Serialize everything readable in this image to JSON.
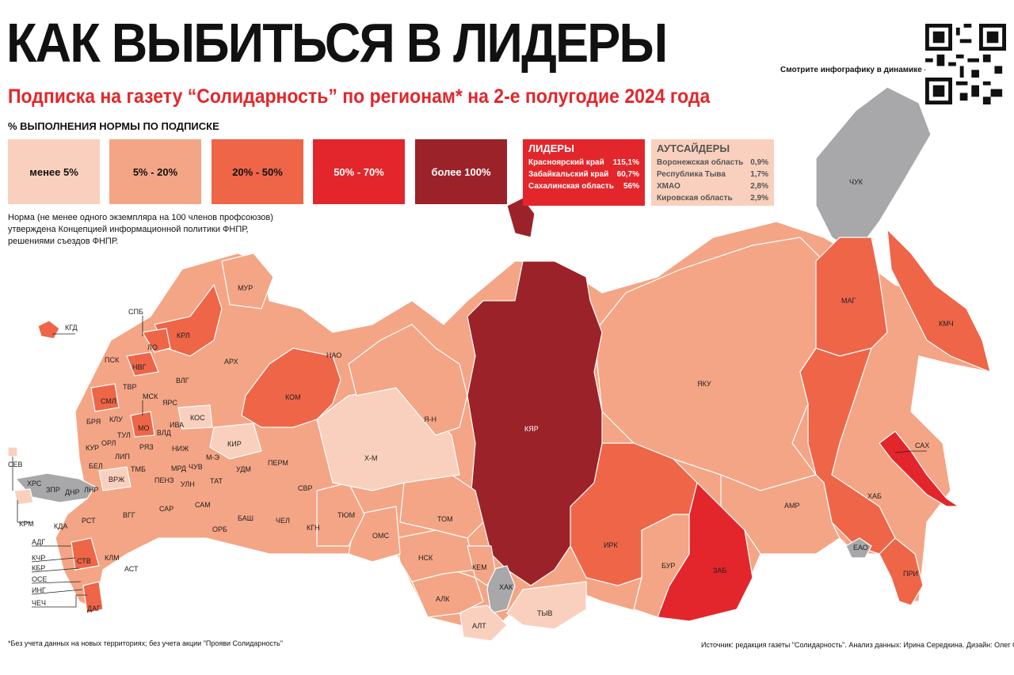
{
  "header": {
    "title": "КАК ВЫБИТЬСЯ В ЛИДЕРЫ",
    "subtitle": "Подписка на газету “Солидарность” по регионам* на 2-е полугодие 2024 года",
    "qr_caption": "Смотрите инфографику в динамике -"
  },
  "legend": {
    "title": "% ВЫПОЛНЕНИЯ НОРМЫ ПО ПОДПИСКЕ",
    "bins": [
      {
        "label": "менее 5%",
        "color": "#f9d0bd"
      },
      {
        "label": "5% - 20%",
        "color": "#f4a585"
      },
      {
        "label": "20% - 50%",
        "color": "#ee6548"
      },
      {
        "label": "50% - 70%",
        "color": "#e3262b"
      },
      {
        "label": "более 100%",
        "color": "#9c2229"
      }
    ],
    "norm_note": "Норма (не менее одного экземпляра на 100 членов профсоюзов) утверждена Концепцией информационной политики ФНПР, решениями съездов ФНПР."
  },
  "leaders": {
    "title": "ЛИДЕРЫ",
    "rows": [
      {
        "name": "Красноярский край",
        "value": "115,1%"
      },
      {
        "name": "Забайкальский край",
        "value": "60,7%"
      },
      {
        "name": "Сахалинская область",
        "value": "56%"
      }
    ]
  },
  "outsiders": {
    "title": "АУТСАЙДЕРЫ",
    "rows": [
      {
        "name": "Воронежская область",
        "value": "0,9%"
      },
      {
        "name": "Республика Тыва",
        "value": "1,7%"
      },
      {
        "name": "ХМАО",
        "value": "2,8%"
      },
      {
        "name": "Кировская область",
        "value": "2,9%"
      }
    ]
  },
  "map_labels": {
    "kyar": "КЯР",
    "yaku": "ЯКУ",
    "chuk": "ЧУК",
    "mag": "МАГ",
    "kmch": "КМЧ",
    "hab": "ХАБ",
    "amr": "АМР",
    "zab": "ЗАБ",
    "bur": "БУР",
    "irk": "ИРК",
    "tyv": "ТЫВ",
    "hak": "ХАК",
    "alt": "АЛТ",
    "alk": "АЛК",
    "nsk": "НСК",
    "kem": "КЕМ",
    "tom": "ТОМ",
    "oms": "ОМС",
    "tyum": "ТЮМ",
    "hm": "Х-М",
    "yan": "Я-Н",
    "kom": "КОМ",
    "nao": "НАО",
    "arh": "АРХ",
    "mur": "МУР",
    "krl": "КРЛ",
    "kgd": "КГД",
    "spb": "СПБ",
    "lo": "ЛО",
    "nvg": "НВГ",
    "psk": "ПСК",
    "tvr": "ТВР",
    "vlg": "ВЛГ",
    "sml": "СМЛ",
    "msk": "МСК",
    "mo": "МО",
    "yrs": "ЯРС",
    "kos": "КОС",
    "iva": "ИВА",
    "vld": "ВЛД",
    "kir": "КИР",
    "perm": "ПЕРМ",
    "svr": "СВР",
    "udm": "УДМ",
    "me": "М-Э",
    "chu": "ЧУВ",
    "niz": "НИЖ",
    "mrd": "МРД",
    "ryz": "РЯЗ",
    "tul": "ТУЛ",
    "klu": "КЛУ",
    "brya": "БРЯ",
    "orl": "ОРЛ",
    "kur": "КУР",
    "lip": "ЛИП",
    "bel": "БЕЛ",
    "vrzh": "ВРЖ",
    "tmb": "ТМБ",
    "penz": "ПЕНЗ",
    "uln": "УЛН",
    "tat": "ТАТ",
    "sam": "САМ",
    "sar": "САР",
    "vgg": "ВГГ",
    "rst": "РСТ",
    "kda": "КДА",
    "stv": "СТВ",
    "klm": "КЛМ",
    "ast": "АСТ",
    "orb": "ОРБ",
    "bash": "БАШ",
    "chel": "ЧЕЛ",
    "kgn": "КГН",
    "sah": "САХ",
    "eao": "ЕАО",
    "pri": "ПРИ",
    "dag": "ДАГ",
    "adg": "АДГ",
    "kchr": "КЧР",
    "kbr": "КБР",
    "ose": "ОСЕ",
    "ing": "ИНГ",
    "chech": "ЧЕЧ",
    "sev": "СЕВ",
    "krm": "КРМ",
    "hrs": "ХРС",
    "zpr": "ЗПР",
    "dnr": "ДНР",
    "lnr": "ЛНР"
  },
  "footer": {
    "footnote": "*Без учета данных на новых территориях; без учета акции \"Прояви Солидарность\"",
    "source": "Источник: редакция газеты \"Солидарность\". Анализ данных: Ирина Середкина. Дизайн: Олег Сдвижков"
  }
}
